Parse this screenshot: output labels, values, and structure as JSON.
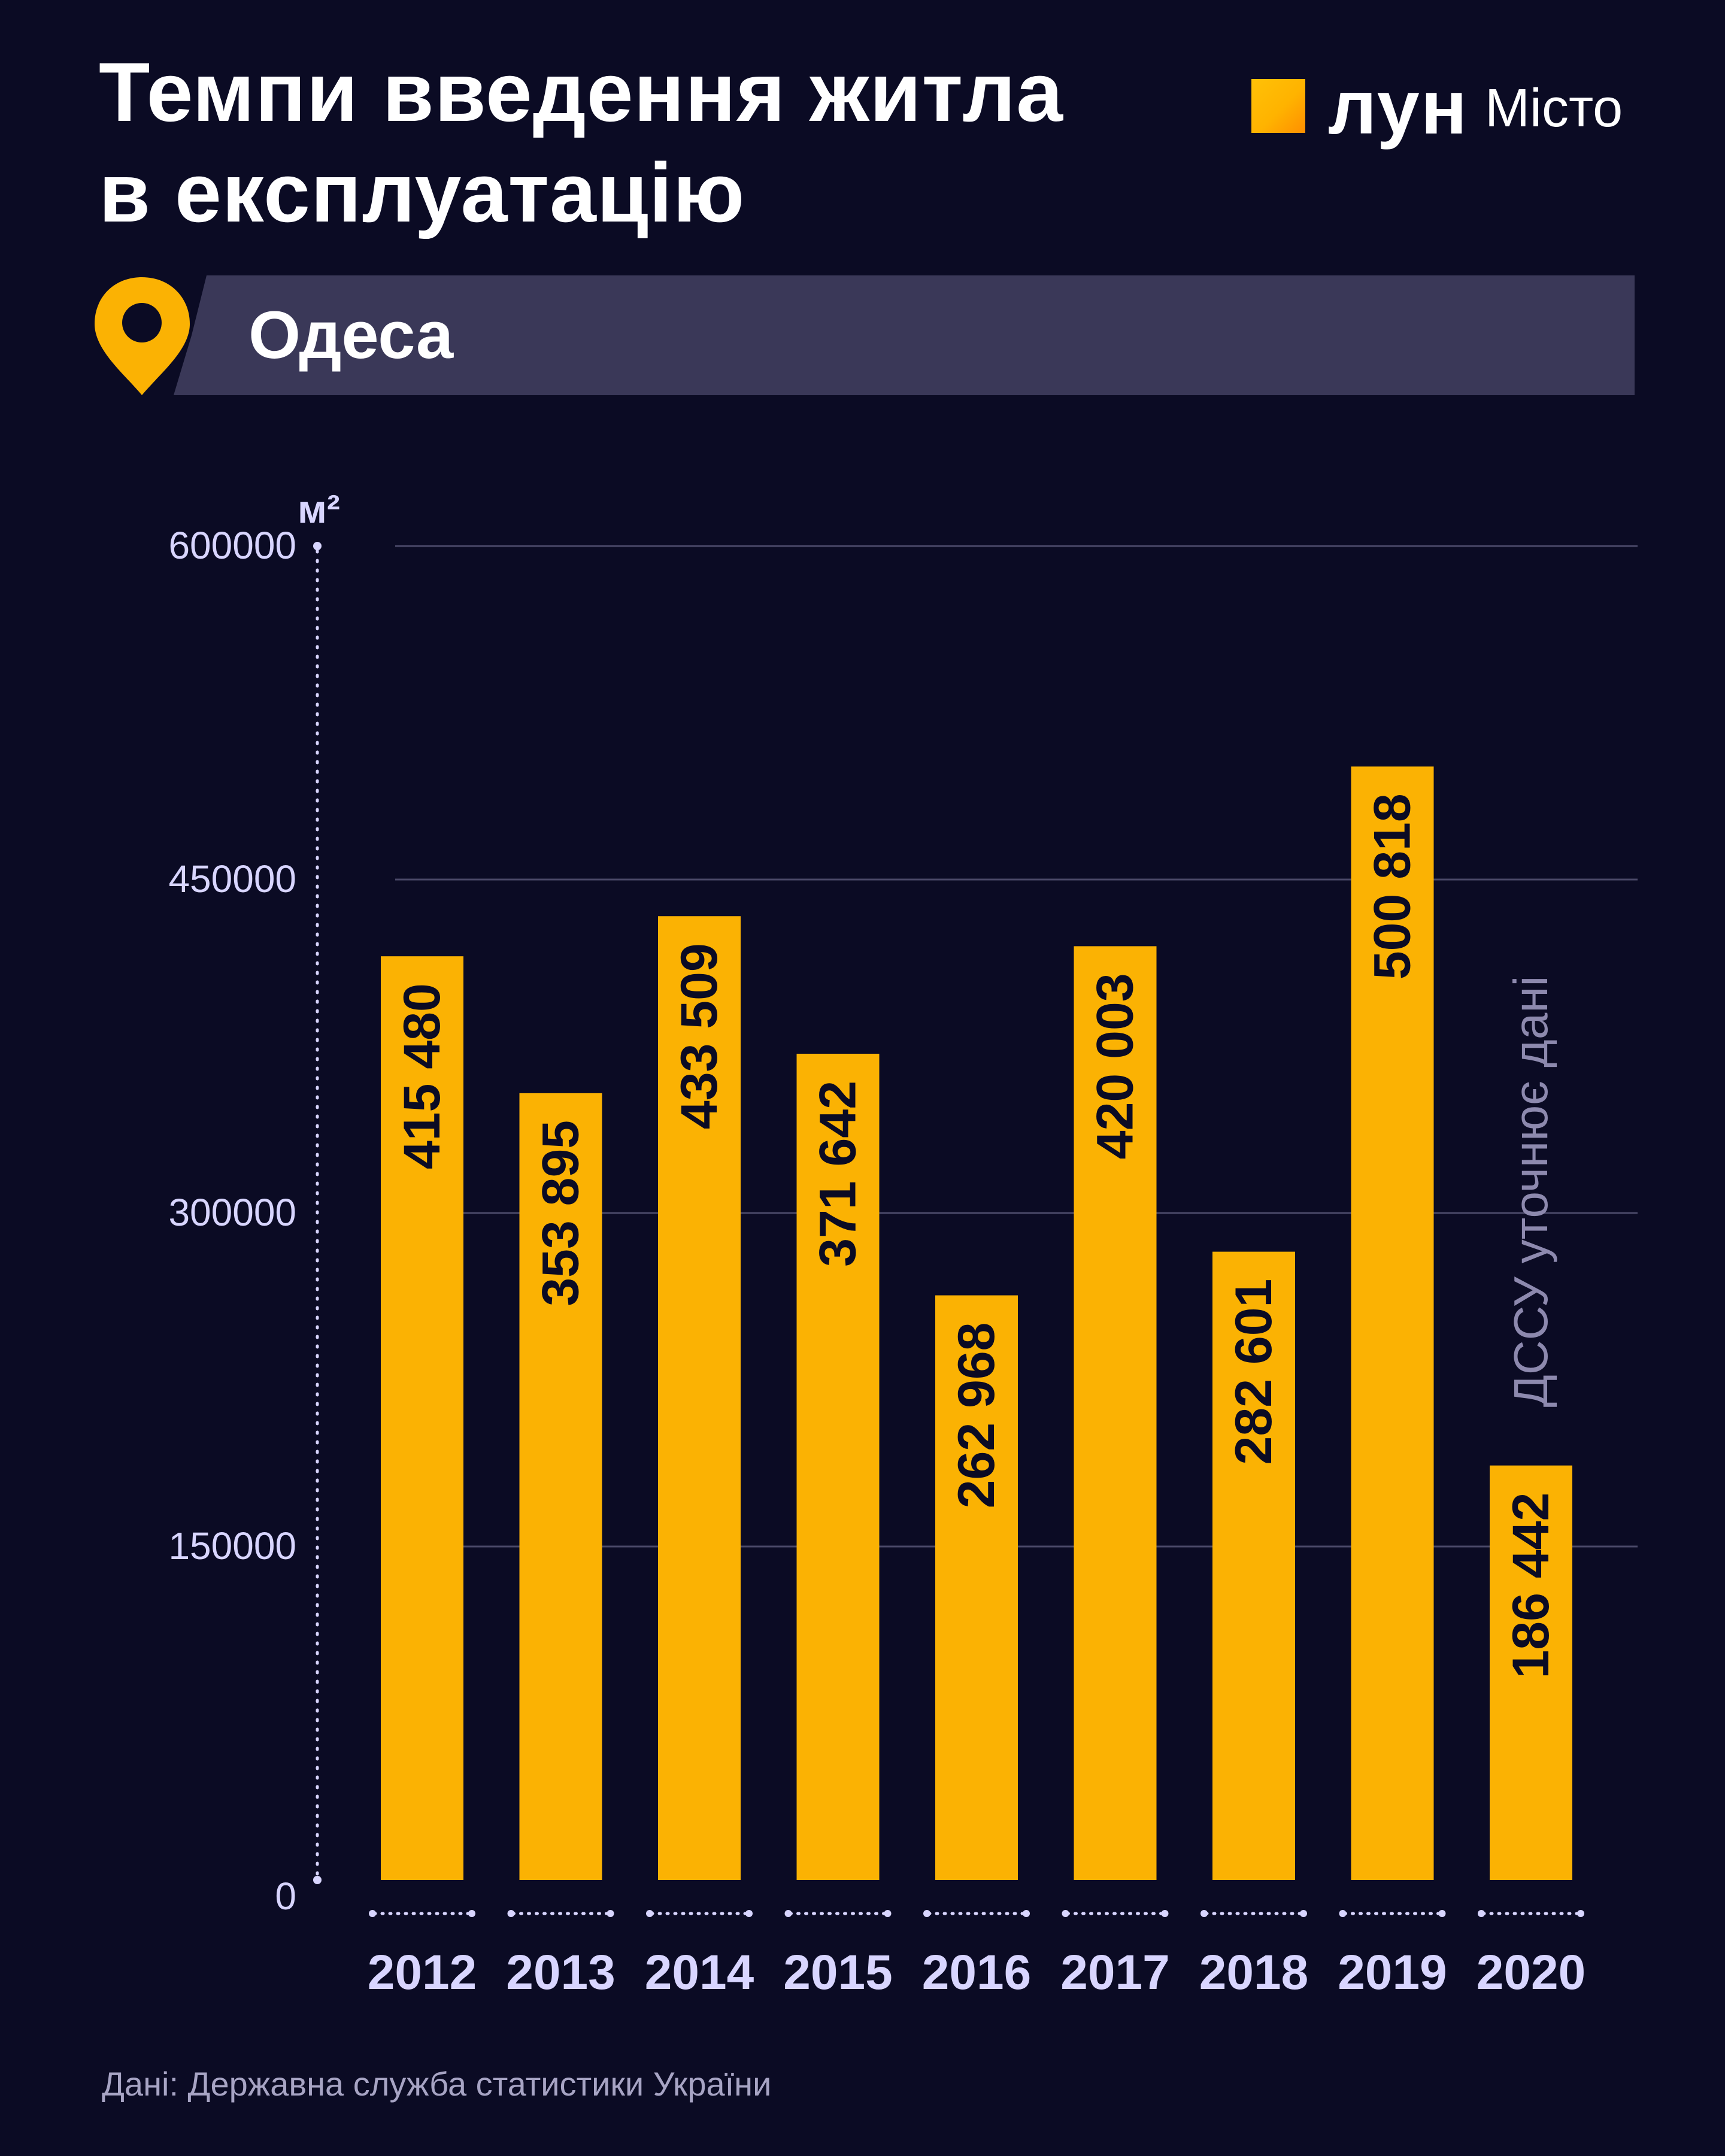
{
  "header": {
    "title_line1": "Темпи введення житла",
    "title_line2": "в експлуатацію",
    "logo_name": "лун",
    "logo_sub": "Місто"
  },
  "location": {
    "label": "Одеса",
    "icon": "map-pin-icon"
  },
  "colors": {
    "background": "#0b0b24",
    "bar": "#fbb203",
    "banner": "#3a3858",
    "axis_text": "#d8d5ff",
    "gridline": "#4a4868"
  },
  "chart_data": {
    "type": "bar",
    "unit_label": "м²",
    "categories": [
      "2012",
      "2013",
      "2014",
      "2015",
      "2016",
      "2017",
      "2018",
      "2019",
      "2020"
    ],
    "values": [
      415480,
      353895,
      433509,
      371642,
      262968,
      420003,
      282601,
      500818,
      186442
    ],
    "value_labels": [
      "415 480",
      "353 895",
      "433 509",
      "371 642",
      "262 968",
      "420 003",
      "282 601",
      "500 818",
      "186 442"
    ],
    "ylim": [
      0,
      600000
    ],
    "yticks": [
      "0",
      "150000",
      "300000",
      "450000",
      "600000"
    ],
    "grid": true,
    "annotation": "ДССУ уточнює дані"
  },
  "footer": {
    "source": "Дані: Державна служба статистики України"
  }
}
